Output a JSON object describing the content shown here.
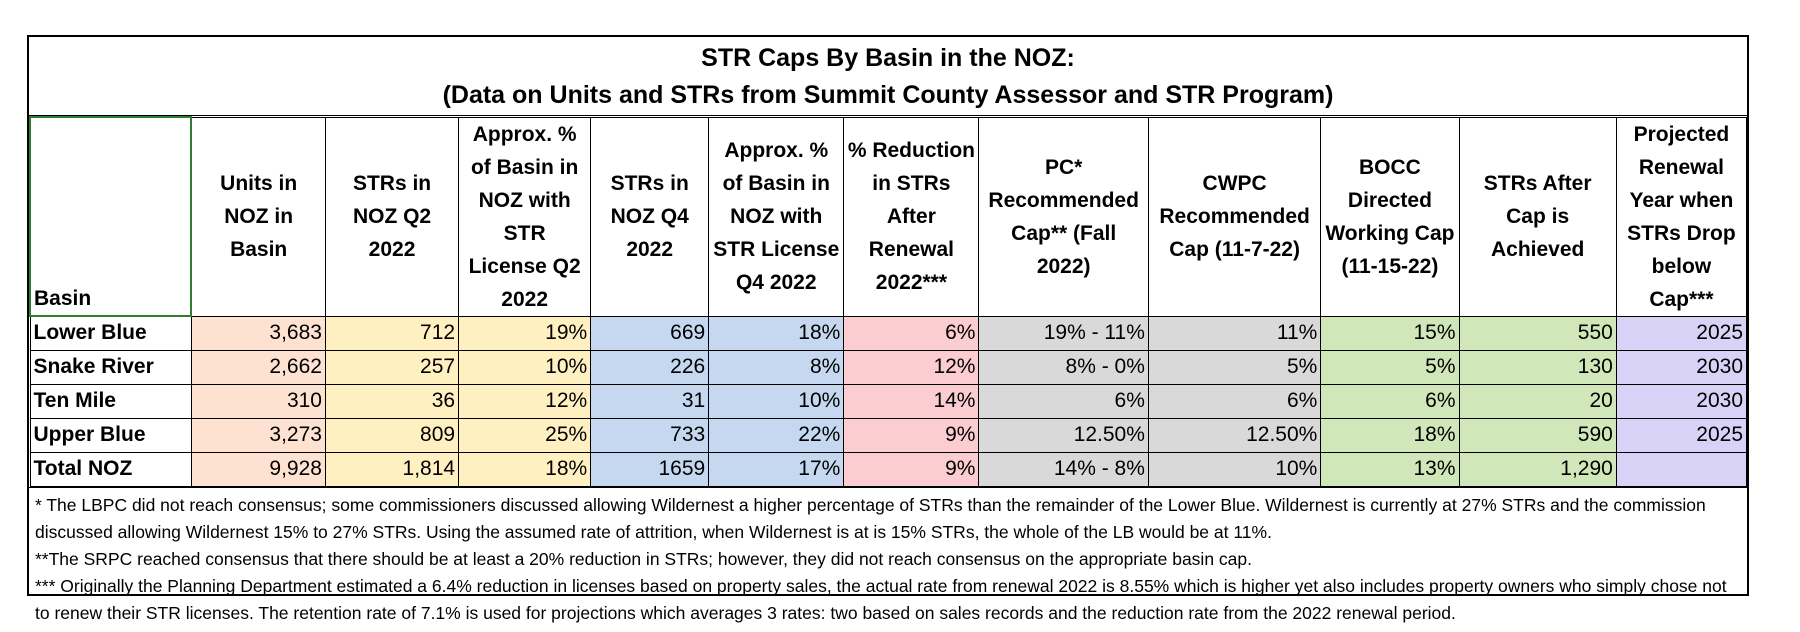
{
  "title": {
    "line1": "STR Caps By Basin in the NOZ:",
    "line2": "(Data on Units and STRs from Summit County Assessor and STR Program)"
  },
  "headers": {
    "basin": "Basin",
    "units": "Units in NOZ in Basin",
    "strs_q2": "STRs in NOZ Q2 2022",
    "pct_q2": "Approx. % of Basin in NOZ with STR License Q2 2022",
    "strs_q4": "STRs in NOZ Q4 2022",
    "pct_q4": "Approx. % of Basin in NOZ with STR License Q4 2022",
    "reduction": "% Reduction in STRs After Renewal 2022***",
    "pc": "PC* Recommended Cap** (Fall 2022)",
    "cwpc": "CWPC Recommended Cap (11-7-22)",
    "bocc": "BOCC Directed Working Cap (11-15-22)",
    "after": "STRs After Cap is Achieved",
    "year": "Projected Renewal Year when STRs Drop below Cap***"
  },
  "rows": [
    {
      "basin": "Lower Blue",
      "units": "3,683",
      "strs_q2": "712",
      "pct_q2": "19%",
      "strs_q4": "669",
      "pct_q4": "18%",
      "reduction": "6%",
      "pc": "19% - 11%",
      "cwpc": "11%",
      "bocc": "15%",
      "after": "550",
      "year": "2025"
    },
    {
      "basin": "Snake River",
      "units": "2,662",
      "strs_q2": "257",
      "pct_q2": "10%",
      "strs_q4": "226",
      "pct_q4": "8%",
      "reduction": "12%",
      "pc": "8% - 0%",
      "cwpc": "5%",
      "bocc": "5%",
      "after": "130",
      "year": "2030"
    },
    {
      "basin": "Ten Mile",
      "units": "310",
      "strs_q2": "36",
      "pct_q2": "12%",
      "strs_q4": "31",
      "pct_q4": "10%",
      "reduction": "14%",
      "pc": "6%",
      "cwpc": "6%",
      "bocc": "6%",
      "after": "20",
      "year": "2030"
    },
    {
      "basin": "Upper Blue",
      "units": "3,273",
      "strs_q2": "809",
      "pct_q2": "25%",
      "strs_q4": "733",
      "pct_q4": "22%",
      "reduction": "9%",
      "pc": "12.50%",
      "cwpc": "12.50%",
      "bocc": "18%",
      "after": "590",
      "year": "2025"
    },
    {
      "basin": "Total  NOZ",
      "units": "9,928",
      "strs_q2": "1,814",
      "pct_q2": "18%",
      "strs_q4": "1659",
      "pct_q4": "17%",
      "reduction": "9%",
      "pc": "14% - 8%",
      "cwpc": "10%",
      "bocc": "13%",
      "after": "1,290",
      "year": ""
    }
  ],
  "notes": {
    "n1": "* The LBPC did not reach consensus; some commissioners discussed allowing Wildernest a higher percentage of STRs than the remainder of the Lower Blue. Wildernest is currently at 27% STRs and the commission discussed allowing Wildernest 15% to 27% STRs. Using the assumed rate of attrition, when Wildernest is at is 15% STRs, the whole of the LB would be at 11%.",
    "n2": "**The SRPC reached consensus that there should be at least a 20% reduction in STRs; however, they did not reach consensus on the appropriate basin cap.",
    "n3": "*** Originally the Planning Department estimated a 6.4% reduction in licenses based on property sales, the actual rate from renewal 2022 is 8.55% which is higher yet also includes property owners who simply chose not to renew their STR licenses. The retention rate of 7.1% is used for projections which averages 3 rates: two based on sales records and the reduction rate from the 2022 renewal period."
  }
}
